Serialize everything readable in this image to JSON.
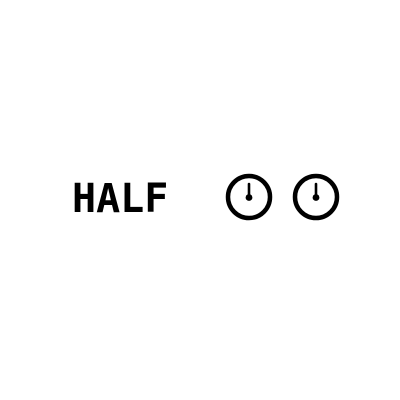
{
  "label": "HALF",
  "gauges": [
    {
      "icon": "dial-gauge-icon"
    },
    {
      "icon": "dial-gauge-icon"
    }
  ],
  "colors": {
    "foreground": "#000000",
    "background": "#ffffff"
  }
}
